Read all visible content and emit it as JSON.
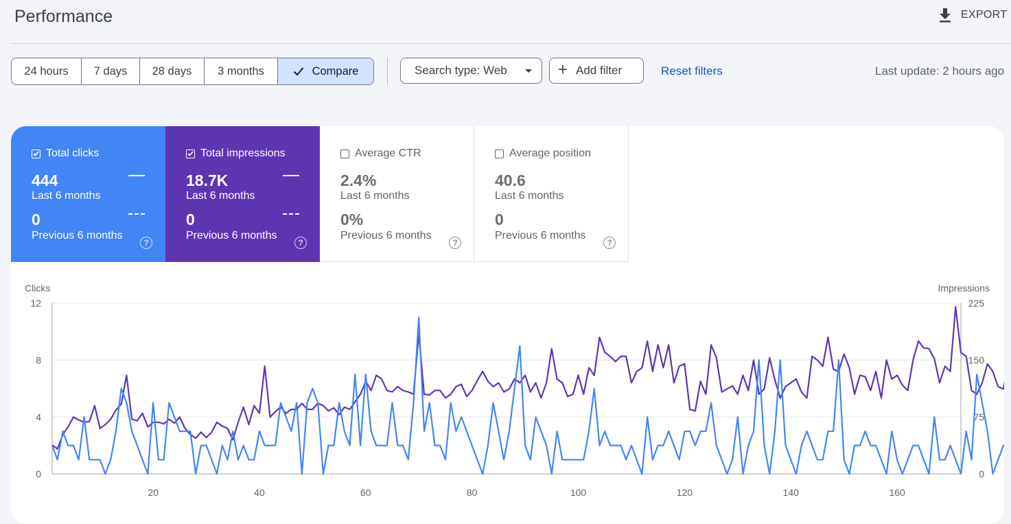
{
  "header": {
    "title": "Performance",
    "export_label": "EXPORT"
  },
  "toolbar": {
    "ranges": [
      "24 hours",
      "7 days",
      "28 days",
      "3 months"
    ],
    "compare_label": "Compare",
    "search_type_label": "Search type: Web",
    "add_filter_label": "Add filter",
    "reset_filters_label": "Reset filters",
    "last_update": "Last update: 2 hours ago"
  },
  "metrics": {
    "clicks": {
      "label": "Total clicks",
      "checked": true,
      "value": "444",
      "period": "Last 6 months",
      "prev_value": "0",
      "prev_period": "Previous 6 months",
      "color": "#4285f4"
    },
    "impressions": {
      "label": "Total impressions",
      "checked": true,
      "value": "18.7K",
      "period": "Last 6 months",
      "prev_value": "0",
      "prev_period": "Previous 6 months",
      "color": "#5e35b1"
    },
    "ctr": {
      "label": "Average CTR",
      "checked": false,
      "value": "2.4%",
      "period": "Last 6 months",
      "prev_value": "0%",
      "prev_period": "Previous 6 months"
    },
    "position": {
      "label": "Average position",
      "checked": false,
      "value": "40.6",
      "period": "Last 6 months",
      "prev_value": "0",
      "prev_period": "Previous 6 months"
    }
  },
  "icons": {
    "export": "download-icon",
    "compare": "check-icon",
    "search_type": "caret-down-icon",
    "add_filter": "plus-icon",
    "help": "help-circle-icon"
  },
  "chart_data": {
    "type": "line",
    "ylabel_left": "Clicks",
    "ylabel_right": "Impressions",
    "left_ticks": [
      0,
      4,
      8,
      12
    ],
    "right_ticks": [
      0,
      75,
      150,
      225
    ],
    "x_ticks": [
      20,
      40,
      60,
      80,
      100,
      120,
      140,
      160
    ],
    "xlim": [
      1,
      172
    ],
    "ylim_left": [
      0,
      12
    ],
    "ylim_right": [
      0,
      225
    ],
    "grid": true,
    "series": [
      {
        "name": "Clicks",
        "axis": "left",
        "color": "#4285f4",
        "values": [
          2,
          1,
          3,
          2,
          2,
          1,
          4,
          1,
          1,
          1,
          0,
          1,
          3,
          6,
          5,
          3,
          2,
          1,
          0,
          5,
          1,
          1,
          5,
          4,
          3,
          3,
          3,
          0,
          2,
          2,
          1,
          0,
          2,
          1,
          3,
          1,
          2,
          1,
          1,
          3,
          2,
          2,
          2,
          5,
          4,
          3,
          5,
          0,
          5,
          6,
          5,
          0,
          2,
          2,
          5,
          3,
          2,
          7,
          2,
          7,
          3,
          2,
          2,
          2,
          5,
          2,
          2,
          1,
          5,
          11,
          3,
          5,
          2,
          2,
          1,
          5,
          3,
          4,
          3,
          2,
          1,
          0,
          2,
          5,
          3,
          1,
          3,
          6,
          9,
          2,
          1,
          4,
          3,
          2,
          0,
          3,
          1,
          1,
          1,
          1,
          1,
          3,
          6,
          2,
          3,
          2,
          2,
          2,
          1,
          2,
          1,
          0,
          4,
          1,
          2,
          2,
          3,
          2,
          1,
          3,
          3,
          2,
          3,
          3,
          5,
          2,
          1,
          0,
          1,
          4,
          0,
          2,
          3,
          8,
          2,
          0,
          3,
          8,
          2,
          1,
          0,
          2,
          3,
          2,
          1,
          1,
          3,
          3,
          8,
          1,
          0,
          2,
          2,
          3,
          2,
          2,
          1,
          0,
          3,
          1,
          0,
          1,
          2,
          2,
          1,
          0,
          4,
          1,
          1,
          2,
          1,
          0,
          3,
          1,
          7,
          5,
          3,
          0,
          1,
          2,
          2,
          3,
          4,
          5
        ]
      },
      {
        "name": "Impressions",
        "axis": "right",
        "color": "#5e35b1",
        "values": [
          38,
          33,
          52,
          62,
          75,
          71,
          68,
          69,
          90,
          60,
          65,
          72,
          84,
          92,
          130,
          72,
          70,
          80,
          62,
          68,
          68,
          66,
          72,
          67,
          75,
          60,
          52,
          47,
          55,
          48,
          55,
          68,
          63,
          60,
          45,
          68,
          88,
          65,
          90,
          80,
          142,
          75,
          82,
          88,
          80,
          85,
          85,
          93,
          85,
          85,
          93,
          90,
          83,
          87,
          78,
          88,
          85,
          95,
          105,
          122,
          110,
          130,
          125,
          110,
          108,
          115,
          110,
          108,
          105,
          185,
          105,
          104,
          110,
          110,
          100,
          105,
          115,
          118,
          102,
          110,
          123,
          135,
          122,
          115,
          120,
          108,
          112,
          125,
          120,
          130,
          108,
          120,
          100,
          120,
          165,
          125,
          120,
          102,
          105,
          130,
          105,
          140,
          130,
          180,
          160,
          155,
          148,
          155,
          155,
          120,
          135,
          140,
          175,
          135,
          170,
          140,
          170,
          120,
          142,
          145,
          85,
          83,
          122,
          105,
          170,
          153,
          108,
          112,
          116,
          105,
          130,
          110,
          150,
          105,
          112,
          153,
          124,
          100,
          115,
          120,
          125,
          108,
          100,
          155,
          150,
          142,
          180,
          138,
          135,
          158,
          140,
          105,
          130,
          128,
          110,
          135,
          100,
          150,
          125,
          130,
          117,
          110,
          150,
          175,
          166,
          165,
          152,
          120,
          142,
          135,
          220,
          160,
          155,
          110,
          105,
          120,
          145,
          135,
          115,
          112,
          148
        ]
      }
    ]
  }
}
